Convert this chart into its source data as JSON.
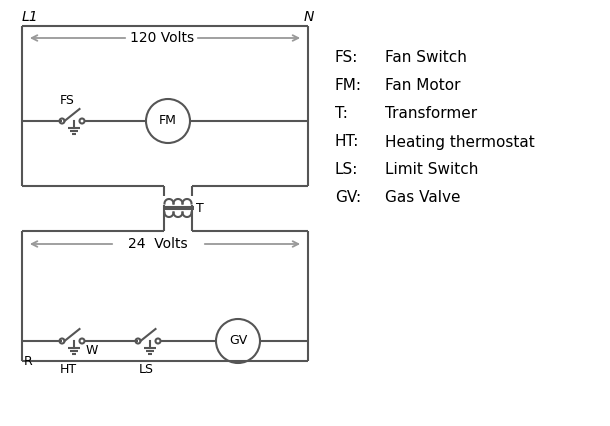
{
  "bg_color": "#ffffff",
  "line_color": "#555555",
  "text_color": "#000000",
  "legend_items": [
    [
      "FS:",
      "Fan Switch"
    ],
    [
      "FM:",
      "Fan Motor"
    ],
    [
      "T:",
      "Transformer"
    ],
    [
      "HT:",
      "Heating thermostat"
    ],
    [
      "LS:",
      "Limit Switch"
    ],
    [
      "GV:",
      "Gas Valve"
    ]
  ],
  "L1_label": "L1",
  "N_label": "N",
  "volts120_label": "120 Volts",
  "volts24_label": "24  Volts",
  "T_label": "T",
  "FS_label": "FS",
  "FM_label": "FM",
  "R_label": "R",
  "W_label": "W",
  "HT_label": "HT",
  "LS_label": "LS",
  "GV_label": "GV",
  "arrow_color": "#999999"
}
